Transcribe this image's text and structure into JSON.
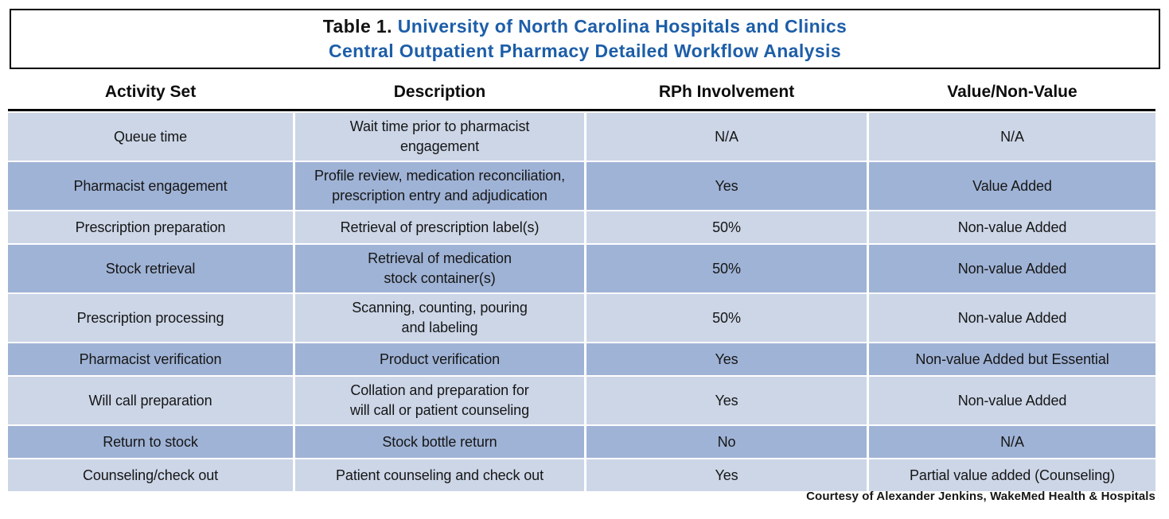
{
  "title": {
    "prefix": "Table 1.",
    "line1": "University of North Carolina Hospitals and Clinics",
    "line2": "Central Outpatient Pharmacy Detailed Workflow Analysis"
  },
  "table": {
    "columns": [
      {
        "key": "activity",
        "label": "Activity Set"
      },
      {
        "key": "description",
        "label": "Description"
      },
      {
        "key": "rph",
        "label": "RPh Involvement"
      },
      {
        "key": "value",
        "label": "Value/Non-Value"
      }
    ],
    "rows": [
      {
        "activity": "Queue time",
        "description": "Wait time prior to pharmacist\nengagement",
        "rph": "N/A",
        "value": "N/A"
      },
      {
        "activity": "Pharmacist engagement",
        "description": "Profile review, medication reconciliation,\nprescription entry and adjudication",
        "rph": "Yes",
        "value": "Value Added"
      },
      {
        "activity": "Prescription preparation",
        "description": "Retrieval of prescription label(s)",
        "rph": "50%",
        "value": "Non-value Added"
      },
      {
        "activity": "Stock retrieval",
        "description": "Retrieval of medication\nstock container(s)",
        "rph": "50%",
        "value": "Non-value Added"
      },
      {
        "activity": "Prescription processing",
        "description": "Scanning, counting, pouring\nand labeling",
        "rph": "50%",
        "value": "Non-value Added"
      },
      {
        "activity": "Pharmacist verification",
        "description": "Product verification",
        "rph": "Yes",
        "value": "Non-value Added but Essential"
      },
      {
        "activity": "Will call preparation",
        "description": "Collation and preparation for\nwill call or patient counseling",
        "rph": "Yes",
        "value": "Non-value Added"
      },
      {
        "activity": "Return to stock",
        "description": "Stock bottle return",
        "rph": "No",
        "value": "N/A"
      },
      {
        "activity": "Counseling/check out",
        "description": "Patient counseling and check out",
        "rph": "Yes",
        "value": "Partial value added (Counseling)"
      }
    ]
  },
  "footer": {
    "text": "Courtesy of Alexander Jenkins, WakeMed Health & Hospitals"
  },
  "colors": {
    "row_light": "#ccd6e7",
    "row_dark": "#9fb3d6",
    "title_blue": "#1d5ea8",
    "title_dark": "#121212",
    "rule": "#000000",
    "text": "#161616"
  }
}
